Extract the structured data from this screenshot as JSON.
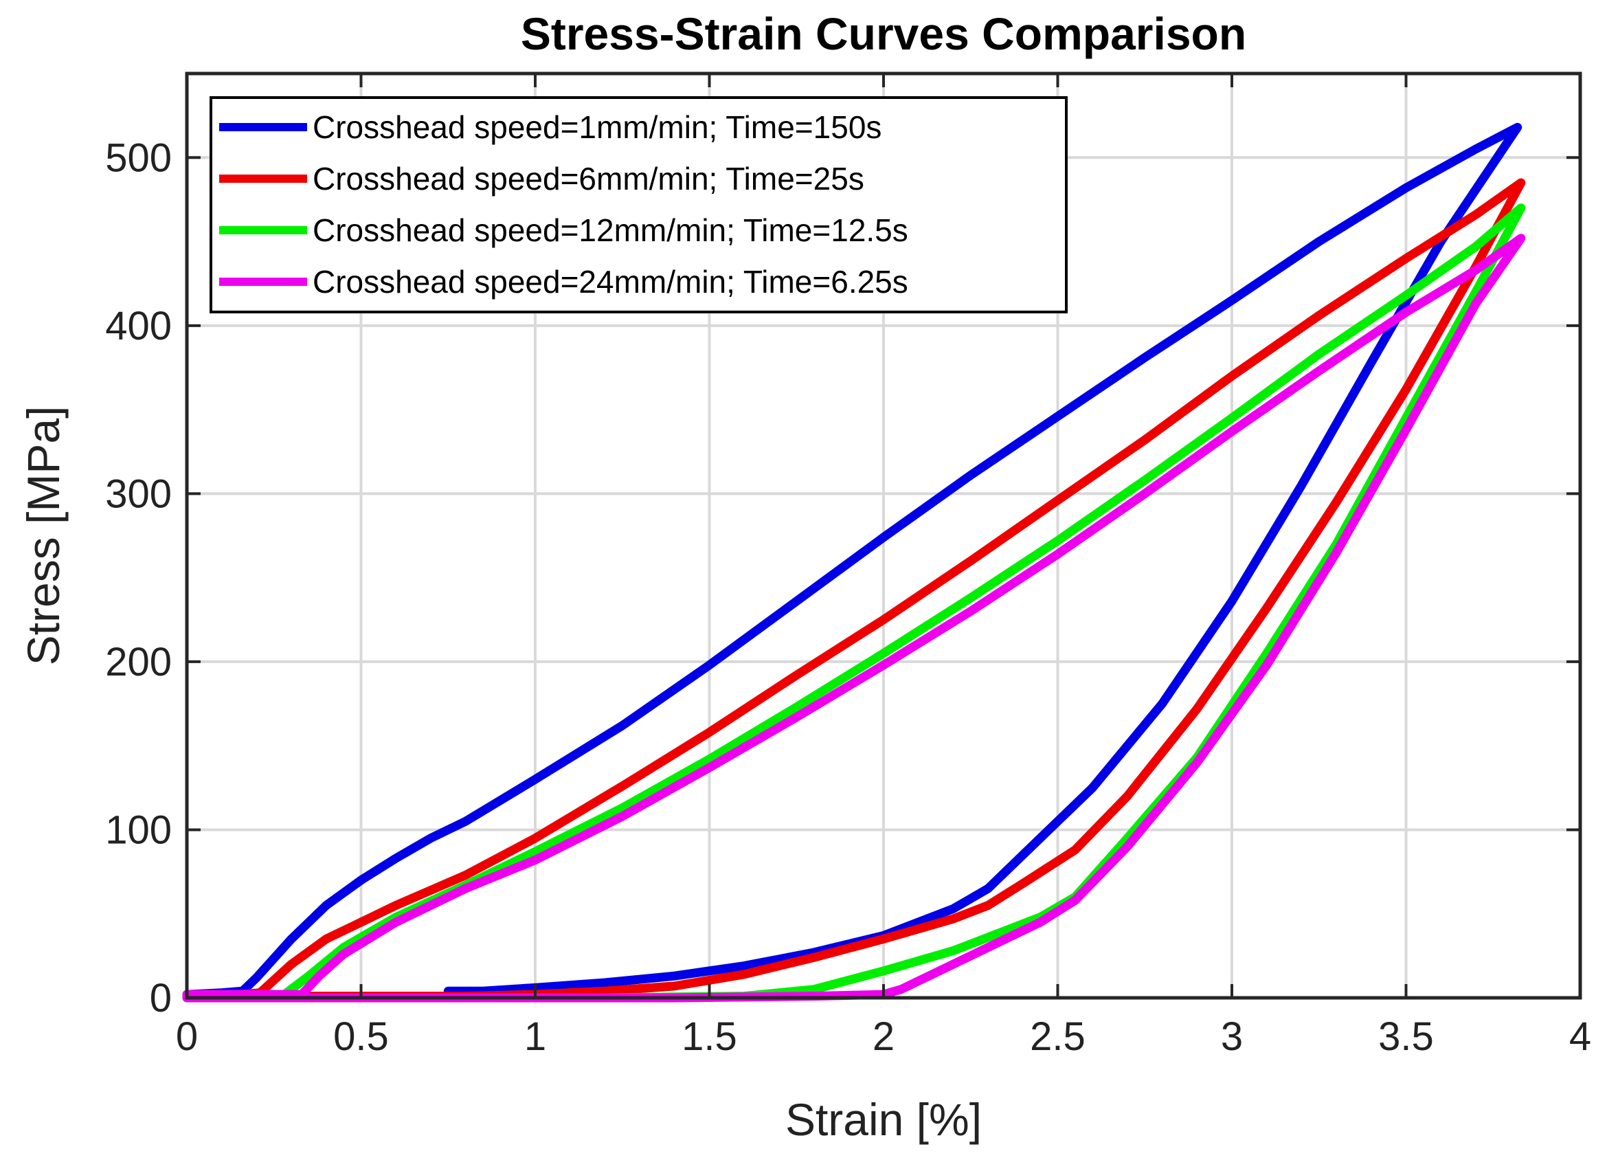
{
  "chart_data": {
    "type": "line",
    "title": "Stress-Strain Curves Comparison",
    "xlabel": "Strain [%]",
    "ylabel": "Stress [MPa]",
    "xlim": [
      0,
      4
    ],
    "ylim": [
      0,
      550
    ],
    "xticks": [
      0,
      0.5,
      1,
      1.5,
      2,
      2.5,
      3,
      3.5,
      4
    ],
    "xtick_labels": [
      "0",
      "0.5",
      "1",
      "1.5",
      "2",
      "2.5",
      "3",
      "3.5",
      "4"
    ],
    "yticks": [
      0,
      100,
      200,
      300,
      400,
      500
    ],
    "ytick_labels": [
      "0",
      "100",
      "200",
      "300",
      "400",
      "500"
    ],
    "grid": true,
    "legend_position": "top-left",
    "series": [
      {
        "name": "Crosshead speed=1mm/min; Time=150s",
        "color": "#0000e6",
        "points": [
          [
            0,
            2
          ],
          [
            0.1,
            3
          ],
          [
            0.16,
            4
          ],
          [
            0.2,
            12
          ],
          [
            0.3,
            35
          ],
          [
            0.4,
            55
          ],
          [
            0.5,
            70
          ],
          [
            0.6,
            83
          ],
          [
            0.7,
            95
          ],
          [
            0.8,
            105
          ],
          [
            1.0,
            130
          ],
          [
            1.25,
            162
          ],
          [
            1.5,
            198
          ],
          [
            1.75,
            236
          ],
          [
            2.0,
            274
          ],
          [
            2.25,
            311
          ],
          [
            2.5,
            346
          ],
          [
            2.75,
            381
          ],
          [
            3.0,
            415
          ],
          [
            3.25,
            450
          ],
          [
            3.5,
            482
          ],
          [
            3.7,
            505
          ],
          [
            3.82,
            518
          ],
          [
            3.6,
            450
          ],
          [
            3.4,
            378
          ],
          [
            3.2,
            305
          ],
          [
            3.0,
            236
          ],
          [
            2.8,
            175
          ],
          [
            2.6,
            125
          ],
          [
            2.4,
            85
          ],
          [
            2.3,
            65
          ],
          [
            2.2,
            53
          ],
          [
            2.1,
            45
          ],
          [
            2.0,
            37
          ],
          [
            1.8,
            27
          ],
          [
            1.6,
            19
          ],
          [
            1.4,
            13
          ],
          [
            1.2,
            9
          ],
          [
            1.0,
            6
          ],
          [
            0.85,
            4
          ],
          [
            0.75,
            4
          ]
        ]
      },
      {
        "name": "Crosshead speed=6mm/min; Time=25s",
        "color": "#ee0000",
        "points": [
          [
            0,
            2
          ],
          [
            0.15,
            2
          ],
          [
            0.21,
            3
          ],
          [
            0.3,
            20
          ],
          [
            0.4,
            35
          ],
          [
            0.5,
            45
          ],
          [
            0.6,
            55
          ],
          [
            0.8,
            73
          ],
          [
            1.0,
            95
          ],
          [
            1.25,
            126
          ],
          [
            1.5,
            158
          ],
          [
            1.75,
            192
          ],
          [
            2.0,
            225
          ],
          [
            2.25,
            260
          ],
          [
            2.5,
            296
          ],
          [
            2.75,
            332
          ],
          [
            3.0,
            370
          ],
          [
            3.25,
            406
          ],
          [
            3.5,
            440
          ],
          [
            3.7,
            466
          ],
          [
            3.83,
            485
          ],
          [
            3.7,
            435
          ],
          [
            3.5,
            362
          ],
          [
            3.3,
            295
          ],
          [
            3.1,
            232
          ],
          [
            2.9,
            172
          ],
          [
            2.7,
            120
          ],
          [
            2.55,
            88
          ],
          [
            2.4,
            68
          ],
          [
            2.3,
            55
          ],
          [
            2.2,
            47
          ],
          [
            2.0,
            35
          ],
          [
            1.8,
            24
          ],
          [
            1.6,
            14
          ],
          [
            1.4,
            7
          ],
          [
            1.2,
            4
          ],
          [
            1.0,
            2
          ],
          [
            0.8,
            1
          ],
          [
            0.5,
            1
          ],
          [
            0.2,
            1
          ],
          [
            0,
            1
          ]
        ]
      },
      {
        "name": "Crosshead speed=12mm/min; Time=12.5s",
        "color": "#00ee00",
        "points": [
          [
            0,
            2
          ],
          [
            0.28,
            2
          ],
          [
            0.35,
            13
          ],
          [
            0.45,
            30
          ],
          [
            0.6,
            48
          ],
          [
            0.8,
            67
          ],
          [
            1.0,
            87
          ],
          [
            1.25,
            113
          ],
          [
            1.5,
            142
          ],
          [
            1.75,
            173
          ],
          [
            2.0,
            205
          ],
          [
            2.25,
            238
          ],
          [
            2.5,
            272
          ],
          [
            2.75,
            308
          ],
          [
            3.0,
            345
          ],
          [
            3.25,
            383
          ],
          [
            3.5,
            418
          ],
          [
            3.7,
            447
          ],
          [
            3.83,
            470
          ],
          [
            3.7,
            420
          ],
          [
            3.5,
            345
          ],
          [
            3.3,
            270
          ],
          [
            3.1,
            205
          ],
          [
            2.9,
            143
          ],
          [
            2.7,
            95
          ],
          [
            2.55,
            60
          ],
          [
            2.45,
            48
          ],
          [
            2.35,
            40
          ],
          [
            2.2,
            28
          ],
          [
            2.0,
            16
          ],
          [
            1.8,
            5
          ],
          [
            1.6,
            1
          ],
          [
            1.2,
            0
          ],
          [
            0.8,
            0
          ],
          [
            0.4,
            0
          ],
          [
            0,
            0
          ]
        ]
      },
      {
        "name": "Crosshead speed=24mm/min; Time=6.25s",
        "color": "#ee00ee",
        "points": [
          [
            0,
            2
          ],
          [
            0.33,
            2
          ],
          [
            0.38,
            13
          ],
          [
            0.45,
            26
          ],
          [
            0.6,
            45
          ],
          [
            0.8,
            65
          ],
          [
            1.0,
            82
          ],
          [
            1.25,
            108
          ],
          [
            1.5,
            137
          ],
          [
            1.75,
            167
          ],
          [
            2.0,
            198
          ],
          [
            2.25,
            230
          ],
          [
            2.5,
            264
          ],
          [
            2.75,
            300
          ],
          [
            3.0,
            337
          ],
          [
            3.25,
            373
          ],
          [
            3.5,
            408
          ],
          [
            3.7,
            433
          ],
          [
            3.83,
            452
          ],
          [
            3.7,
            413
          ],
          [
            3.5,
            338
          ],
          [
            3.3,
            265
          ],
          [
            3.1,
            198
          ],
          [
            2.9,
            140
          ],
          [
            2.7,
            90
          ],
          [
            2.55,
            58
          ],
          [
            2.45,
            45
          ],
          [
            2.35,
            35
          ],
          [
            2.2,
            20
          ],
          [
            2.05,
            5
          ],
          [
            2.0,
            2
          ],
          [
            1.8,
            1
          ],
          [
            1.4,
            0
          ],
          [
            1.0,
            0
          ],
          [
            0.5,
            0
          ],
          [
            0,
            0
          ]
        ]
      }
    ]
  }
}
